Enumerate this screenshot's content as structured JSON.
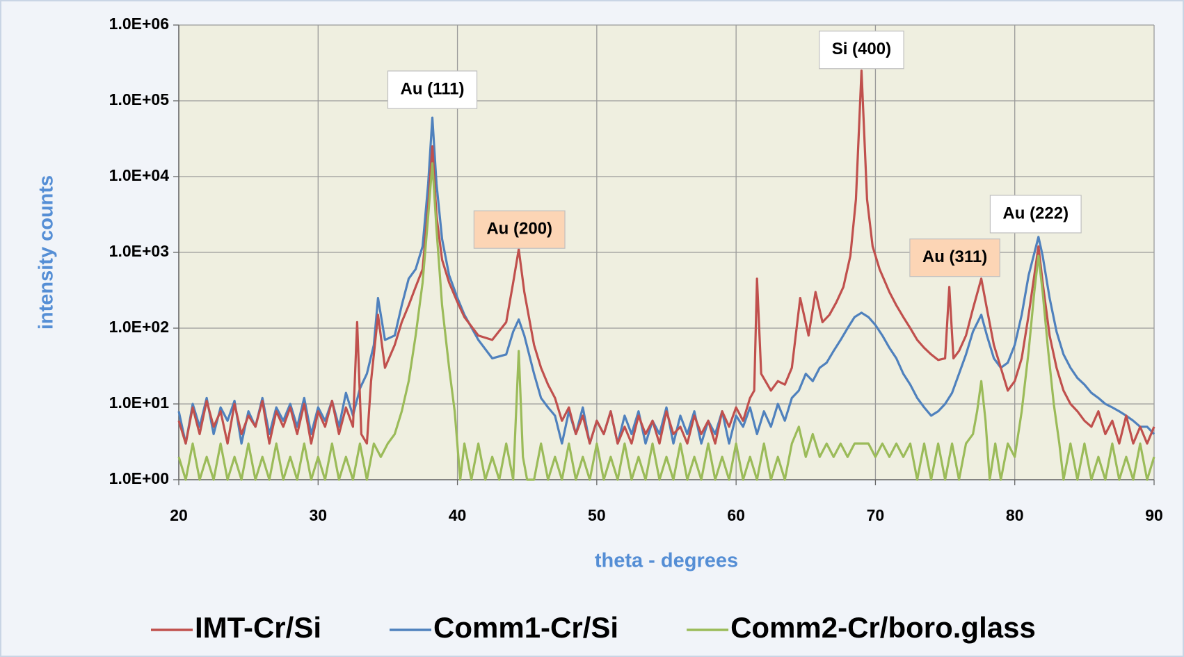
{
  "chart_data": {
    "type": "line",
    "yscale": "log",
    "grid": true,
    "legend": "bottom",
    "xlabel": "theta - degrees",
    "ylabel": "intensity counts",
    "xlim": [
      20,
      90
    ],
    "xticks": [
      20,
      30,
      40,
      50,
      60,
      70,
      80,
      90
    ],
    "ylim": [
      1,
      1000000
    ],
    "yticks": [
      {
        "value": 1,
        "label": "1.0E+00"
      },
      {
        "value": 10,
        "label": "1.0E+01"
      },
      {
        "value": 100,
        "label": "1.0E+02"
      },
      {
        "value": 1000,
        "label": "1.0E+03"
      },
      {
        "value": 10000,
        "label": "1.0E+04"
      },
      {
        "value": 100000,
        "label": "1.0E+05"
      },
      {
        "value": 1000000,
        "label": "1.0E+06"
      }
    ],
    "annotations": [
      {
        "text": "Au (111)",
        "x": 38.2,
        "y": 140000,
        "box_color": "#ffffff"
      },
      {
        "text": "Au (200)",
        "x": 44.45,
        "y": 2000,
        "box_color": "#fcd5b5"
      },
      {
        "text": "Si (400)",
        "x": 69.0,
        "y": 470000,
        "box_color": "#ffffff"
      },
      {
        "text": "Au (311)",
        "x": 75.7,
        "y": 850,
        "box_color": "#fcd5b5"
      },
      {
        "text": "Au (222)",
        "x": 81.5,
        "y": 3200,
        "box_color": "#ffffff"
      }
    ],
    "series": [
      {
        "name": "IMT-Cr/Si",
        "color": "#c0504d",
        "x": [
          20,
          20.5,
          21,
          21.5,
          22,
          22.5,
          23,
          23.5,
          24,
          24.5,
          25,
          25.5,
          26,
          26.5,
          27,
          27.5,
          28,
          28.5,
          29,
          29.5,
          30,
          30.5,
          31,
          31.5,
          32,
          32.5,
          32.8,
          33.1,
          33.5,
          33.8,
          34.3,
          34.8,
          35.5,
          36,
          36.5,
          37,
          37.5,
          37.9,
          38.2,
          38.5,
          38.9,
          39.4,
          40,
          40.5,
          41.5,
          42.5,
          43.5,
          44,
          44.4,
          44.8,
          45.5,
          46,
          46.5,
          47,
          47.5,
          48,
          48.5,
          49,
          49.5,
          50,
          50.5,
          51,
          51.5,
          52,
          52.5,
          53,
          53.5,
          54,
          54.5,
          55,
          55.5,
          56,
          56.5,
          57,
          57.5,
          58,
          58.5,
          59,
          59.5,
          60,
          60.5,
          61,
          61.3,
          61.5,
          61.8,
          62.5,
          63,
          63.5,
          64,
          64.6,
          65.2,
          65.7,
          66.2,
          66.7,
          67.2,
          67.7,
          68.2,
          68.6,
          69,
          69.4,
          69.8,
          70.3,
          71,
          71.5,
          72,
          72.5,
          73,
          73.5,
          74,
          74.5,
          75,
          75.3,
          75.6,
          76,
          76.5,
          77,
          77.6,
          78,
          78.5,
          79,
          79.5,
          80,
          80.5,
          81,
          81.7,
          82,
          82.5,
          83,
          83.5,
          84,
          84.5,
          85,
          85.5,
          86,
          86.5,
          87,
          87.5,
          88,
          88.5,
          89,
          89.5,
          90
        ],
        "values": [
          6,
          3,
          9,
          4,
          11,
          5,
          8,
          3,
          10,
          4,
          7,
          5,
          11,
          3,
          8,
          5,
          9,
          4,
          10,
          3,
          8,
          5,
          11,
          4,
          9,
          5,
          120,
          4,
          3,
          20,
          150,
          30,
          60,
          120,
          200,
          350,
          600,
          4000,
          25000,
          3000,
          800,
          400,
          220,
          140,
          80,
          70,
          120,
          400,
          1100,
          300,
          60,
          30,
          18,
          12,
          6,
          9,
          4,
          7,
          3,
          6,
          4,
          8,
          3,
          5,
          3,
          7,
          4,
          6,
          3,
          8,
          4,
          5,
          3,
          7,
          4,
          6,
          3,
          8,
          5,
          9,
          6,
          12,
          15,
          450,
          25,
          15,
          20,
          18,
          30,
          250,
          80,
          300,
          120,
          150,
          220,
          350,
          900,
          5000,
          250000,
          5000,
          1200,
          600,
          300,
          200,
          140,
          100,
          70,
          55,
          45,
          38,
          40,
          350,
          40,
          50,
          80,
          180,
          450,
          180,
          60,
          30,
          15,
          20,
          40,
          150,
          1200,
          400,
          80,
          30,
          15,
          10,
          8,
          6,
          5,
          8,
          4,
          6,
          3,
          7,
          3,
          5,
          3,
          5
        ]
      },
      {
        "name": "Comm1-Cr/Si",
        "color": "#4f81bd",
        "x": [
          20,
          20.5,
          21,
          21.5,
          22,
          22.5,
          23,
          23.5,
          24,
          24.5,
          25,
          25.5,
          26,
          26.5,
          27,
          27.5,
          28,
          28.5,
          29,
          29.5,
          30,
          30.5,
          31,
          31.5,
          32,
          32.5,
          33,
          33.5,
          34,
          34.3,
          34.8,
          35.5,
          36,
          36.5,
          37,
          37.5,
          37.9,
          38.2,
          38.5,
          38.9,
          39.4,
          40,
          40.5,
          41.5,
          42.5,
          43.5,
          44,
          44.4,
          44.8,
          45.5,
          46,
          46.5,
          47,
          47.5,
          48,
          48.5,
          49,
          49.5,
          50,
          50.5,
          51,
          51.5,
          52,
          52.5,
          53,
          53.5,
          54,
          54.5,
          55,
          55.5,
          56,
          56.5,
          57,
          57.5,
          58,
          58.5,
          59,
          59.5,
          60,
          60.5,
          61,
          61.5,
          62,
          62.5,
          63,
          63.5,
          64,
          64.5,
          65,
          65.5,
          66,
          66.5,
          67,
          67.5,
          68,
          68.5,
          69,
          69.5,
          70,
          70.5,
          71,
          71.5,
          72,
          72.5,
          73,
          73.5,
          74,
          74.5,
          75,
          75.5,
          76,
          76.5,
          77,
          77.6,
          78,
          78.5,
          79,
          79.5,
          80,
          80.5,
          81,
          81.7,
          82,
          82.5,
          83,
          83.5,
          84,
          84.5,
          85,
          85.5,
          86,
          86.5,
          87,
          87.5,
          88,
          88.5,
          89,
          89.5,
          90
        ],
        "values": [
          8,
          3,
          10,
          5,
          12,
          4,
          9,
          6,
          11,
          3,
          8,
          5,
          12,
          4,
          9,
          6,
          10,
          5,
          12,
          4,
          9,
          6,
          11,
          5,
          14,
          7,
          16,
          25,
          60,
          250,
          70,
          80,
          200,
          450,
          600,
          1200,
          8000,
          60000,
          8000,
          1500,
          500,
          250,
          150,
          70,
          40,
          45,
          90,
          130,
          80,
          25,
          12,
          9,
          7,
          3,
          8,
          4,
          9,
          3,
          6,
          4,
          8,
          3,
          7,
          4,
          8,
          3,
          6,
          4,
          9,
          3,
          7,
          4,
          8,
          3,
          6,
          4,
          8,
          3,
          7,
          5,
          9,
          4,
          8,
          5,
          10,
          6,
          12,
          15,
          25,
          20,
          30,
          35,
          50,
          70,
          100,
          140,
          160,
          140,
          110,
          80,
          55,
          40,
          25,
          18,
          12,
          9,
          7,
          8,
          10,
          14,
          25,
          45,
          90,
          150,
          80,
          40,
          30,
          35,
          60,
          150,
          500,
          1600,
          900,
          250,
          90,
          45,
          30,
          22,
          18,
          14,
          12,
          10,
          9,
          8,
          7,
          6,
          5,
          5,
          4
        ]
      },
      {
        "name": "Comm2-Cr/boro.glass",
        "color": "#9bbb59",
        "x": [
          20,
          20.5,
          21,
          21.5,
          22,
          22.5,
          23,
          23.5,
          24,
          24.5,
          25,
          25.5,
          26,
          26.5,
          27,
          27.5,
          28,
          28.5,
          29,
          29.5,
          30,
          30.5,
          31,
          31.5,
          32,
          32.5,
          33,
          33.5,
          34,
          34.5,
          35,
          35.5,
          36,
          36.5,
          37,
          37.5,
          37.9,
          38.2,
          38.5,
          38.9,
          39.4,
          39.8,
          40.2,
          40.5,
          41,
          41.5,
          42,
          42.5,
          43,
          43.5,
          44,
          44.4,
          44.7,
          45,
          45.5,
          46,
          46.5,
          47,
          47.5,
          48,
          48.5,
          49,
          49.5,
          50,
          50.5,
          51,
          51.5,
          52,
          52.5,
          53,
          53.5,
          54,
          54.5,
          55,
          55.5,
          56,
          56.5,
          57,
          57.5,
          58,
          58.5,
          59,
          59.5,
          60,
          60.5,
          61,
          61.5,
          62,
          62.5,
          63,
          63.5,
          64,
          64.5,
          65,
          65.5,
          66,
          66.5,
          67,
          67.5,
          68,
          68.5,
          69,
          69.5,
          70,
          70.5,
          71,
          71.5,
          72,
          72.5,
          73,
          73.5,
          74,
          74.5,
          75,
          75.5,
          76,
          76.5,
          77,
          77.3,
          77.6,
          77.9,
          78.2,
          78.6,
          79,
          79.5,
          80,
          80.5,
          81,
          81.4,
          81.7,
          82,
          82.4,
          82.8,
          83.2,
          83.5,
          84,
          84.5,
          85,
          85.5,
          86,
          86.5,
          87,
          87.5,
          88,
          88.5,
          89,
          89.5,
          90
        ],
        "values": [
          2,
          1,
          3,
          1,
          2,
          1,
          3,
          1,
          2,
          1,
          3,
          1,
          2,
          1,
          3,
          1,
          2,
          1,
          3,
          1,
          2,
          1,
          3,
          1,
          2,
          1,
          3,
          1,
          3,
          2,
          3,
          4,
          8,
          20,
          80,
          400,
          3000,
          15000,
          2000,
          200,
          30,
          8,
          1,
          3,
          1,
          3,
          1,
          2,
          1,
          3,
          1,
          50,
          2,
          1,
          1,
          3,
          1,
          2,
          1,
          3,
          1,
          2,
          1,
          3,
          1,
          2,
          1,
          3,
          1,
          2,
          1,
          3,
          1,
          2,
          1,
          3,
          1,
          2,
          1,
          3,
          1,
          2,
          1,
          3,
          1,
          2,
          1,
          3,
          1,
          2,
          1,
          3,
          5,
          2,
          4,
          2,
          3,
          2,
          3,
          2,
          3,
          3,
          3,
          2,
          3,
          2,
          3,
          2,
          3,
          1,
          3,
          1,
          3,
          1,
          3,
          1,
          3,
          4,
          8,
          20,
          6,
          1,
          3,
          1,
          3,
          2,
          8,
          50,
          300,
          900,
          300,
          50,
          10,
          3,
          1,
          3,
          1,
          3,
          1,
          2,
          1,
          3,
          1,
          2,
          1,
          3,
          1,
          2
        ]
      }
    ]
  }
}
